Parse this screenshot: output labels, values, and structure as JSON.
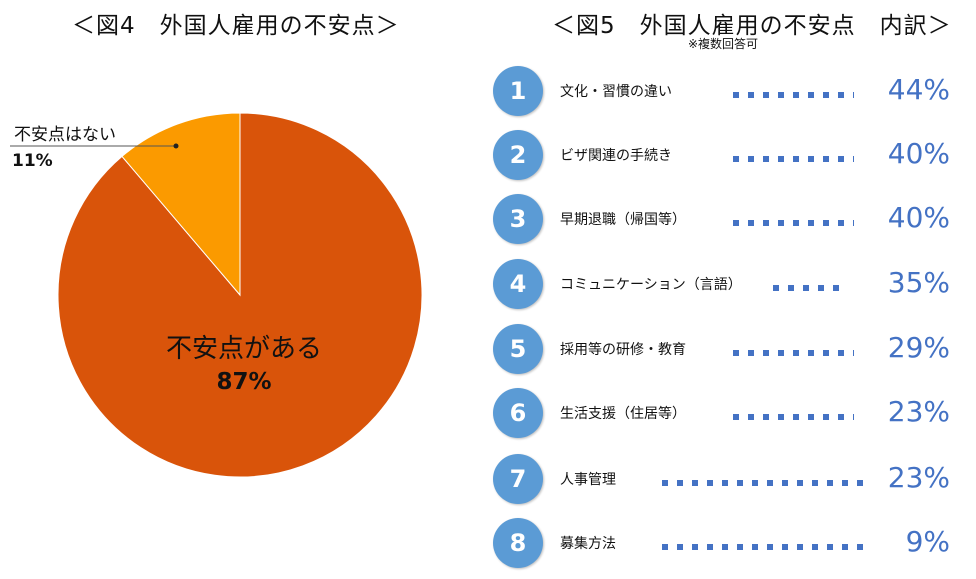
{
  "figure4": {
    "title": "＜図4　外国人雇用の不安点＞"
  },
  "figure5": {
    "title": "＜図5　外国人雇用の不安点　内訳＞",
    "note": "※複数回答可"
  },
  "colors": {
    "pie_main": "#d9540a",
    "pie_minor": "#fb9a00",
    "badge": "#5b9bd5",
    "dots": "#4472c4",
    "pct_text": "#4472c4"
  },
  "chart_data": [
    {
      "type": "pie",
      "title": "＜図4　外国人雇用の不安点＞",
      "slices": [
        {
          "label": "不安点がある",
          "value": 87,
          "display": "87%"
        },
        {
          "label": "不安点はない",
          "value": 11,
          "display": "11%"
        }
      ]
    },
    {
      "type": "bar",
      "title": "＜図5　外国人雇用の不安点　内訳＞",
      "note": "※複数回答可",
      "categories": [
        "文化・習慣の違い",
        "ビザ関連の手続き",
        "早期退職（帰国等）",
        "コミュニケーション（言語）",
        "採用等の研修・教育",
        "生活支援（住居等）",
        "人事管理",
        "募集方法"
      ],
      "ranks": [
        "1",
        "2",
        "3",
        "4",
        "5",
        "6",
        "7",
        "8"
      ],
      "values": [
        44,
        40,
        40,
        35,
        29,
        23,
        23,
        9
      ],
      "labels": [
        "44%",
        "40%",
        "40%",
        "35%",
        "29%",
        "23%",
        "23%",
        "9%"
      ]
    }
  ]
}
